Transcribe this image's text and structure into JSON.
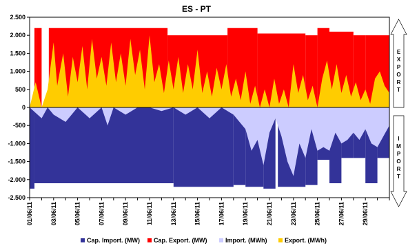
{
  "chart_data": {
    "type": "area",
    "title": "ES - PT",
    "xlabel": "",
    "ylabel": "",
    "ylim": [
      -2500,
      2500
    ],
    "yticks": [
      2500,
      2000,
      1500,
      1000,
      500,
      0,
      -500,
      -1000,
      -1500,
      -2000,
      -2500
    ],
    "ytick_labels": [
      "2.500",
      "2.000",
      "1.500",
      "1.000",
      "500",
      "0",
      "-500",
      "-1.000",
      "-1.500",
      "-2.000",
      "-2.500"
    ],
    "xticks": [
      "01/06/11",
      "03/06/11",
      "05/06/11",
      "07/06/11",
      "09/06/11",
      "11/06/11",
      "13/06/11",
      "15/06/11",
      "17/06/11",
      "19/06/11",
      "21/06/11",
      "23/06/11",
      "25/06/11",
      "27/06/11",
      "29/06/11"
    ],
    "x_range_days": [
      0,
      30
    ],
    "grid": false,
    "legend_position": "bottom",
    "side_labels": {
      "export": "EXPORT",
      "import": "IMPORT"
    },
    "colors": {
      "cap_import": "#333399",
      "cap_export": "#ff0000",
      "import": "#ccccff",
      "export": "#ffcc00"
    },
    "series": [
      {
        "name": "Cap. Import. (MW)",
        "key": "cap_import",
        "segments": [
          {
            "from": 0.0,
            "to": 0.4,
            "value": -2250
          },
          {
            "from": 0.4,
            "to": 12.0,
            "value": -2100
          },
          {
            "from": 12.0,
            "to": 17.0,
            "value": -2200
          },
          {
            "from": 17.0,
            "to": 18.0,
            "value": -2150
          },
          {
            "from": 18.0,
            "to": 19.5,
            "value": -2200
          },
          {
            "from": 19.5,
            "to": 20.5,
            "value": -2250
          },
          {
            "from": 20.7,
            "to": 23.0,
            "value": -2200
          },
          {
            "from": 23.0,
            "to": 24.0,
            "value": -2150
          },
          {
            "from": 24.0,
            "to": 25.0,
            "value": -1450
          },
          {
            "from": 25.0,
            "to": 26.0,
            "value": -2100
          },
          {
            "from": 26.0,
            "to": 27.0,
            "value": -1400
          },
          {
            "from": 27.0,
            "to": 28.0,
            "value": -1400
          },
          {
            "from": 28.0,
            "to": 29.0,
            "value": -2100
          },
          {
            "from": 29.0,
            "to": 30.0,
            "value": -1400
          }
        ]
      },
      {
        "name": "Cap. Export. (MW)",
        "key": "cap_export",
        "segments": [
          {
            "from": 0.0,
            "to": 0.4,
            "value": 0
          },
          {
            "from": 0.4,
            "to": 0.6,
            "value": 2200
          },
          {
            "from": 0.6,
            "to": 1.0,
            "value": 2200
          },
          {
            "from": 1.0,
            "to": 1.6,
            "value": 0
          },
          {
            "from": 1.6,
            "to": 11.5,
            "value": 2200
          },
          {
            "from": 11.5,
            "to": 16.5,
            "value": 2000
          },
          {
            "from": 16.5,
            "to": 19.0,
            "value": 2200
          },
          {
            "from": 19.0,
            "to": 23.0,
            "value": 2050
          },
          {
            "from": 23.0,
            "to": 24.0,
            "value": 2000
          },
          {
            "from": 24.0,
            "to": 25.0,
            "value": 2200
          },
          {
            "from": 25.0,
            "to": 27.0,
            "value": 2100
          },
          {
            "from": 27.0,
            "to": 28.0,
            "value": 2000
          },
          {
            "from": 28.0,
            "to": 30.0,
            "value": 2000
          }
        ]
      },
      {
        "name": "Import. (MWh)",
        "key": "import",
        "points": [
          [
            0,
            0
          ],
          [
            1,
            -300
          ],
          [
            1.5,
            0
          ],
          [
            2,
            -200
          ],
          [
            3,
            -400
          ],
          [
            4,
            0
          ],
          [
            5,
            -300
          ],
          [
            6,
            0
          ],
          [
            6.5,
            -500
          ],
          [
            7,
            0
          ],
          [
            8,
            -200
          ],
          [
            9,
            0
          ],
          [
            10,
            0
          ],
          [
            11,
            -100
          ],
          [
            12,
            0
          ],
          [
            13,
            -200
          ],
          [
            14,
            0
          ],
          [
            15,
            -300
          ],
          [
            16,
            0
          ],
          [
            17,
            -200
          ],
          [
            18,
            -600
          ],
          [
            18.5,
            -1200
          ],
          [
            19,
            -900
          ],
          [
            19.5,
            -1600
          ],
          [
            20,
            -700
          ],
          [
            20.5,
            -300
          ],
          [
            21,
            -800
          ],
          [
            21.5,
            -1500
          ],
          [
            22,
            -1900
          ],
          [
            22.5,
            -1000
          ],
          [
            23,
            -1400
          ],
          [
            23.5,
            -600
          ],
          [
            24,
            -1200
          ],
          [
            24.5,
            -1100
          ],
          [
            25,
            -1200
          ],
          [
            25.5,
            -700
          ],
          [
            26,
            -1000
          ],
          [
            26.5,
            -900
          ],
          [
            27,
            -700
          ],
          [
            27.5,
            -900
          ],
          [
            28,
            -600
          ],
          [
            28.5,
            -1000
          ],
          [
            29,
            -1100
          ],
          [
            29.5,
            -800
          ],
          [
            30,
            -500
          ]
        ]
      },
      {
        "name": "Export. (MWh)",
        "key": "export",
        "points": [
          [
            0,
            0
          ],
          [
            0.5,
            700
          ],
          [
            1,
            0
          ],
          [
            1.5,
            500
          ],
          [
            2,
            1800
          ],
          [
            2.3,
            600
          ],
          [
            2.8,
            1500
          ],
          [
            3.2,
            300
          ],
          [
            3.6,
            1400
          ],
          [
            4,
            700
          ],
          [
            4.4,
            1700
          ],
          [
            4.8,
            500
          ],
          [
            5.2,
            1900
          ],
          [
            5.6,
            800
          ],
          [
            6,
            1400
          ],
          [
            6.4,
            600
          ],
          [
            6.8,
            1800
          ],
          [
            7.2,
            700
          ],
          [
            7.6,
            1500
          ],
          [
            8,
            600
          ],
          [
            8.4,
            1900
          ],
          [
            8.8,
            900
          ],
          [
            9.2,
            1600
          ],
          [
            9.6,
            500
          ],
          [
            10,
            2000
          ],
          [
            10.4,
            700
          ],
          [
            10.8,
            1200
          ],
          [
            11.2,
            400
          ],
          [
            11.6,
            1300
          ],
          [
            12,
            500
          ],
          [
            12.4,
            1400
          ],
          [
            12.8,
            400
          ],
          [
            13.2,
            1200
          ],
          [
            13.6,
            500
          ],
          [
            14,
            1600
          ],
          [
            14.4,
            400
          ],
          [
            14.8,
            1000
          ],
          [
            15.2,
            300
          ],
          [
            15.6,
            1100
          ],
          [
            16,
            500
          ],
          [
            16.4,
            1200
          ],
          [
            16.8,
            300
          ],
          [
            17.2,
            800
          ],
          [
            17.6,
            200
          ],
          [
            18,
            1000
          ],
          [
            18.4,
            100
          ],
          [
            18.8,
            600
          ],
          [
            19.2,
            0
          ],
          [
            19.6,
            500
          ],
          [
            20,
            0
          ],
          [
            20.4,
            800
          ],
          [
            20.8,
            100
          ],
          [
            21.2,
            500
          ],
          [
            21.6,
            0
          ],
          [
            22,
            1200
          ],
          [
            22.4,
            400
          ],
          [
            22.8,
            900
          ],
          [
            23.2,
            200
          ],
          [
            23.6,
            600
          ],
          [
            24,
            0
          ],
          [
            24.4,
            800
          ],
          [
            24.8,
            1300
          ],
          [
            25.2,
            500
          ],
          [
            25.6,
            1200
          ],
          [
            26,
            400
          ],
          [
            26.4,
            900
          ],
          [
            26.8,
            300
          ],
          [
            27.2,
            700
          ],
          [
            27.6,
            200
          ],
          [
            28,
            500
          ],
          [
            28.4,
            100
          ],
          [
            28.8,
            800
          ],
          [
            29.2,
            1000
          ],
          [
            29.6,
            600
          ],
          [
            30,
            400
          ]
        ]
      }
    ]
  }
}
